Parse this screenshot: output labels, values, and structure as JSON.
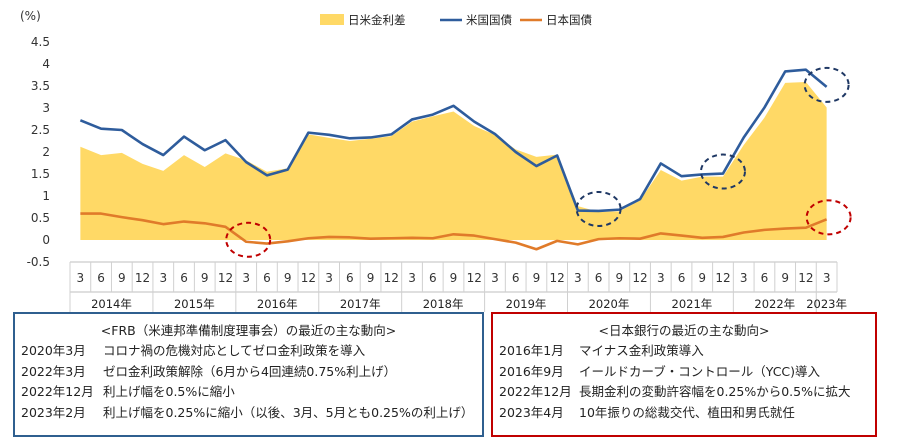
{
  "chart_data": {
    "type": "line",
    "ylabel": "(%)",
    "ylim": [
      -0.5,
      4.5
    ],
    "yticks": [
      "4.5",
      "4",
      "3.5",
      "3",
      "2.5",
      "2",
      "1.5",
      "1",
      "0.5",
      "0",
      "-0.5"
    ],
    "months": [
      "3",
      "6",
      "9",
      "12",
      "3",
      "6",
      "9",
      "12",
      "3",
      "6",
      "9",
      "12",
      "3",
      "6",
      "9",
      "12",
      "3",
      "6",
      "9",
      "12",
      "3",
      "6",
      "9",
      "12",
      "3",
      "6",
      "9",
      "12",
      "3",
      "6",
      "9",
      "12",
      "3",
      "6",
      "9",
      "12",
      "3"
    ],
    "years": [
      "2014年",
      "2015年",
      "2016年",
      "2017年",
      "2018年",
      "2019年",
      "2020年",
      "2021年",
      "2022年",
      "2023年"
    ],
    "legend": [
      "日米金利差",
      "米国国債",
      "日本国債"
    ],
    "colors": {
      "spread": "#ffd966",
      "us": "#2e5c9c",
      "jp": "#e07b2a",
      "us_circle": "#1f3864",
      "jp_circle": "#c00000"
    },
    "series": [
      {
        "name": "米国国債",
        "values": [
          2.72,
          2.53,
          2.5,
          2.18,
          1.93,
          2.35,
          2.04,
          2.27,
          1.77,
          1.47,
          1.6,
          2.44,
          2.39,
          2.31,
          2.33,
          2.4,
          2.74,
          2.85,
          3.05,
          2.69,
          2.41,
          2.0,
          1.68,
          1.92,
          0.67,
          0.66,
          0.69,
          0.93,
          1.74,
          1.45,
          1.49,
          1.51,
          2.33,
          3.01,
          3.83,
          3.87,
          3.48
        ]
      },
      {
        "name": "日本国債",
        "values": [
          0.6,
          0.6,
          0.52,
          0.45,
          0.36,
          0.42,
          0.38,
          0.3,
          -0.04,
          -0.08,
          -0.03,
          0.04,
          0.07,
          0.06,
          0.03,
          0.04,
          0.05,
          0.04,
          0.13,
          0.1,
          0.02,
          -0.06,
          -0.21,
          -0.02,
          -0.1,
          0.02,
          0.04,
          0.03,
          0.15,
          0.1,
          0.05,
          0.07,
          0.17,
          0.23,
          0.26,
          0.28,
          0.47
        ]
      },
      {
        "name": "日米金利差",
        "values": [
          2.12,
          1.93,
          1.98,
          1.73,
          1.57,
          1.93,
          1.66,
          1.97,
          1.81,
          1.55,
          1.63,
          2.4,
          2.32,
          2.25,
          2.3,
          2.36,
          2.69,
          2.81,
          2.92,
          2.59,
          2.39,
          2.06,
          1.89,
          1.94,
          0.77,
          0.64,
          0.65,
          0.9,
          1.59,
          1.35,
          1.44,
          1.44,
          2.16,
          2.78,
          3.57,
          3.59,
          3.01
        ]
      }
    ],
    "highlights": {
      "us": [
        25,
        31,
        36
      ],
      "jp": [
        8,
        36
      ]
    }
  },
  "us_box": {
    "title": "<FRB（米連邦準備制度理事会）の最近の主な動向>",
    "rows": [
      {
        "date": "2020年3月",
        "text": "コロナ禍の危機対応としてゼロ金利政策を導入"
      },
      {
        "date": "2022年3月",
        "text": "ゼロ金利政策解除（6月から4回連続0.75%利上げ）"
      },
      {
        "date": "2022年12月",
        "text": "利上げ幅を0.5%に縮小"
      },
      {
        "date": "2023年2月",
        "text": "利上げ幅を0.25%に縮小（以後、3月、5月とも0.25%の利上げ）"
      }
    ]
  },
  "jp_box": {
    "title": "<日本銀行の最近の主な動向>",
    "rows": [
      {
        "date": "2016年1月",
        "text": "マイナス金利政策導入"
      },
      {
        "date": "2016年9月",
        "text": "イールドカーブ・コントロール（YCC)導入"
      },
      {
        "date": "2022年12月",
        "text": "長期金利の変動許容幅を0.25%から0.5%に拡大"
      },
      {
        "date": "2023年4月",
        "text": "10年振りの総裁交代、植田和男氏就任"
      }
    ]
  }
}
